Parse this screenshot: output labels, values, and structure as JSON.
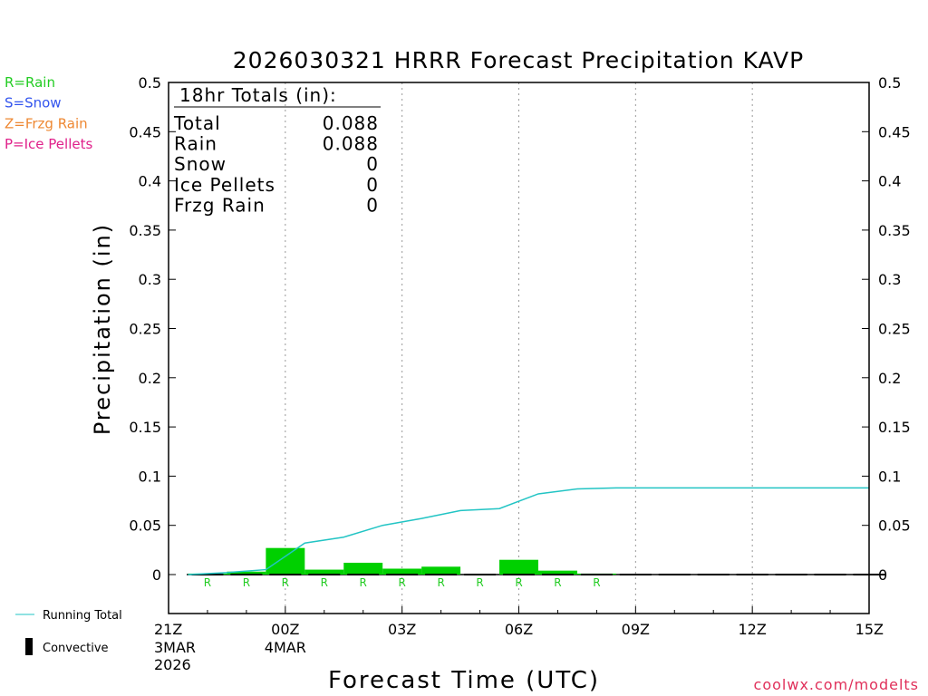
{
  "chart_data": {
    "type": "bar",
    "title": "2026030321 HRRR Forecast Precipitation KAVP",
    "xlabel": "Forecast Time (UTC)",
    "ylabel": "Precipitation (in)",
    "ylim": [
      -0.04,
      0.5
    ],
    "y_ticks": [
      "0.5",
      "0.45",
      "0.4",
      "0.35",
      "0.3",
      "0.25",
      "0.2",
      "0.15",
      "0.1",
      "0.05",
      "0"
    ],
    "x_ticks": [
      {
        "hour": 0,
        "label": "21Z",
        "sub1": "3MAR",
        "sub2": "2026"
      },
      {
        "hour": 3,
        "label": "00Z",
        "sub1": "4MAR",
        "sub2": ""
      },
      {
        "hour": 6,
        "label": "03Z",
        "sub1": "",
        "sub2": ""
      },
      {
        "hour": 9,
        "label": "06Z",
        "sub1": "",
        "sub2": ""
      },
      {
        "hour": 12,
        "label": "09Z",
        "sub1": "",
        "sub2": ""
      },
      {
        "hour": 15,
        "label": "12Z",
        "sub1": "",
        "sub2": ""
      },
      {
        "hour": 18,
        "label": "15Z",
        "sub1": "",
        "sub2": ""
      }
    ],
    "grid": true,
    "hours": [
      1,
      2,
      3,
      4,
      5,
      6,
      7,
      8,
      9,
      10,
      11,
      12,
      13,
      14,
      15,
      16,
      17,
      18
    ],
    "hourly_rain": [
      0.001,
      0.003,
      0.027,
      0.005,
      0.012,
      0.006,
      0.008,
      0.0,
      0.015,
      0.004,
      0.001,
      0,
      0,
      0,
      0,
      0,
      0,
      0
    ],
    "ptype_hours": [
      1,
      2,
      3,
      4,
      5,
      6,
      7,
      8,
      9,
      10,
      11
    ],
    "ptype_marker": "R",
    "running_total": {
      "name": "Running Total",
      "hours": [
        0.5,
        1.5,
        2.5,
        3.5,
        4.5,
        5.5,
        6.5,
        7.5,
        8.5,
        9.5,
        10.5,
        11.5,
        12.5,
        13.5,
        14.5,
        15.5,
        16.5,
        17.5,
        18
      ],
      "values": [
        0.0,
        0.002,
        0.005,
        0.032,
        0.038,
        0.05,
        0.057,
        0.065,
        0.067,
        0.082,
        0.087,
        0.088,
        0.088,
        0.088,
        0.088,
        0.088,
        0.088,
        0.088,
        0.088
      ]
    },
    "totals_box": {
      "header": "18hr Totals (in):",
      "rows": [
        {
          "label": "Total",
          "value": "0.088"
        },
        {
          "label": "Rain",
          "value": "0.088"
        },
        {
          "label": "Snow",
          "value": "0"
        },
        {
          "label": "Ice Pellets",
          "value": "0"
        },
        {
          "label": "Frzg Rain",
          "value": "0"
        }
      ]
    },
    "ptype_legend": [
      {
        "text": "R=Rain",
        "color": "#22cc22"
      },
      {
        "text": "S=Snow",
        "color": "#3355ee"
      },
      {
        "text": "Z=Frzg Rain",
        "color": "#ee8833"
      },
      {
        "text": "P=Ice Pellets",
        "color": "#e0208a"
      }
    ],
    "series_legend": [
      {
        "text": "Running Total",
        "color": "#22c4c4"
      },
      {
        "text": "Convective",
        "color": "#000000"
      }
    ],
    "colors": {
      "rain": "#00d000",
      "running_total": "#22c4c4",
      "marker": "#22cc22"
    },
    "credit": "coolwx.com/modelts",
    "credit_color": "#e0305a"
  }
}
